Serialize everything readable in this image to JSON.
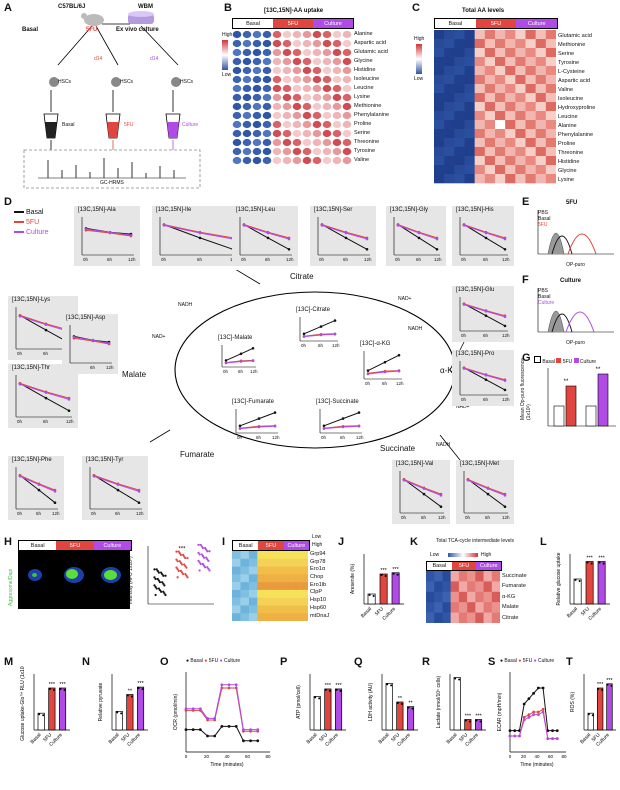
{
  "panels": [
    "A",
    "B",
    "C",
    "D",
    "E",
    "F",
    "G",
    "H",
    "I",
    "J",
    "K",
    "L",
    "M",
    "N",
    "O",
    "P",
    "Q",
    "R",
    "S",
    "T"
  ],
  "groups": {
    "basal": "Basal",
    "fu": "5FU",
    "culture": "Culture",
    "pbs": "PBS"
  },
  "colors": {
    "basal": "#111111",
    "fu": "#e0463f",
    "culture": "#b04be6",
    "heat_high": "#d0343a",
    "heat_low": "#2f56a6"
  },
  "panelA": {
    "mouse": "C57BL/6J",
    "wbm": "WBM",
    "exvivo": "Ex vivo culture",
    "basal": "Basal",
    "fu": "5FU",
    "d14a": "d14",
    "d14b": "d14",
    "hscs1": "HSCs",
    "hscs2": "HSCs",
    "hscs3": "HSCs",
    "out_basal": "Basal",
    "out_fu": "5FU",
    "out_culture": "Culture",
    "gc": "GC-HRMS"
  },
  "panelB": {
    "title": "[13C,15N]-AA uptake",
    "high": "High",
    "low": "Low",
    "rows": [
      "Alanine",
      "Aspartic acid",
      "Glutamic acid",
      "Glycine",
      "Histidine",
      "Isoleucine",
      "Leucine",
      "Lysine",
      "Methionine",
      "Phenylalanine",
      "Proline",
      "Serine",
      "Threonine",
      "Tyrosine",
      "Valine"
    ]
  },
  "panelC": {
    "title": "Total AA levels",
    "high": "High",
    "low": "Low",
    "rows": [
      "Glutamic acid",
      "Methionine",
      "Serine",
      "Tyrosine",
      "L-Cysteine",
      "Aspartic acid",
      "Valine",
      "Isoleucine",
      "Hydroxyproline",
      "Leucine",
      "Alanine",
      "Phenylalanine",
      "Proline",
      "Threonine",
      "Histidine",
      "Glycine",
      "Lysine"
    ]
  },
  "panelD": {
    "legend": [
      "Basal",
      "5FU",
      "Culture"
    ],
    "aa_titles": {
      "ala": "[13C,15N]-Ala",
      "ile": "[13C,15N]-Ile",
      "leu": "[13C,15N]-Leu",
      "ser": "[13C,15N]-Ser",
      "gly": "[13C,15N]-Gly",
      "his": "[13C,15N]-His",
      "lys": "[13C,15N]-Lys",
      "asp": "[13C,15N]-Asp",
      "thr": "[13C,15N]-Thr",
      "glu": "[13C,15N]-Glu",
      "pro": "[13C,15N]-Pro",
      "phe": "[13C,15N]-Phe",
      "tyr": "[13C,15N]-Tyr",
      "val": "[13C,15N]-Val",
      "met": "[13C,15N]-Met"
    },
    "tca_titles": {
      "malate": "[13C]-Malate",
      "citrate": "[13C]-Citrate",
      "akg": "[13C]-α-KG",
      "fumarate": "[13C]-Fumarate",
      "succinate": "[13C]-Succinate"
    },
    "cycle": {
      "citrate": "Citrate",
      "akg": "α-KG",
      "succinate": "Succinate",
      "fumarate": "Fumarate",
      "malate": "Malate",
      "nadh1": "NADH",
      "nad1": "NAD+",
      "nad2": "NAD+",
      "nadh2": "NADH",
      "nad3": "NAD+",
      "nadh3": "NADH"
    },
    "x_ticks": [
      "0h",
      "6h",
      "12h"
    ]
  },
  "panelE": {
    "title": "5FU",
    "legend": [
      "PBS",
      "Basal",
      "5FU"
    ],
    "xlabel": "OP-puro"
  },
  "panelF": {
    "title": "Culture",
    "legend": [
      "PBS",
      "Basal",
      "Culture"
    ],
    "xlabel": "OP-puro"
  },
  "panelG": {
    "legend": [
      "Basal",
      "5FU",
      "Culture"
    ],
    "ylabel": "Mean Op-puro fluorescence (1x10³)",
    "sig": [
      "**",
      "**"
    ],
    "chart_data": {
      "type": "bar",
      "series": [
        {
          "name": "Basal",
          "values": [
            1.0,
            1.0
          ]
        },
        {
          "name": "5FU",
          "values": [
            2.0,
            null
          ]
        },
        {
          "name": "Culture",
          "values": [
            null,
            2.6
          ]
        }
      ]
    }
  },
  "panelH": {
    "header": [
      "Basal",
      "5FU",
      "Culture"
    ],
    "stain": "Aggresome/Dapi",
    "ylabel": "Intensity (AFU 1x10⁶)",
    "sig": [
      "***",
      "***"
    ],
    "chart_data": {
      "type": "scatter",
      "categories": [
        "Basal",
        "5FU",
        "Culture"
      ],
      "values": [
        0.8,
        1.45,
        1.7
      ]
    }
  },
  "panelI": {
    "header": [
      "Basal",
      "5FU",
      "Culture"
    ],
    "rows": [
      "Grp94",
      "Grp78",
      "Ero1α",
      "Chop",
      "Ero1lb",
      "ClpP",
      "Hsp10",
      "Hsp60",
      "mtDnaJ"
    ],
    "low": "Low",
    "high": "High"
  },
  "panelJ": {
    "ylabel": "Aresenite (%)",
    "cats": [
      "Basal",
      "5FU",
      "Culture"
    ],
    "sig": [
      "***",
      "***"
    ],
    "chart_data": {
      "type": "bar",
      "categories": [
        "Basal",
        "5FU",
        "Culture"
      ],
      "values": [
        8,
        24,
        25
      ],
      "ylim": [
        0,
        40
      ]
    }
  },
  "panelK": {
    "title": "Total TCA-cycle intermediate levels",
    "low": "Low",
    "high": "High",
    "header": [
      "Basal",
      "5FU",
      "Culture"
    ],
    "rows": [
      "Succinate",
      "Fumarate",
      "α-KG",
      "Malate",
      "Citrate"
    ]
  },
  "panelL": {
    "ylabel": "Relative glucose uptake",
    "cats": [
      "Basal",
      "5FU",
      "Culture"
    ],
    "sig": [
      "***",
      "***"
    ],
    "chart_data": {
      "type": "bar",
      "categories": [
        "Basal",
        "5FU",
        "Culture"
      ],
      "values": [
        1.0,
        1.7,
        1.7
      ],
      "ylim": [
        0,
        2
      ]
    }
  },
  "panelM": {
    "ylabel": "Glucose uptake-Glo™ RLU (1x10³)",
    "cats": [
      "Basal",
      "5FU",
      "Culture"
    ],
    "sig": [
      "***",
      "***"
    ],
    "chart_data": {
      "type": "bar",
      "categories": [
        "Basal",
        "5FU",
        "Culture"
      ],
      "values": [
        1.2,
        3.0,
        3.0
      ],
      "ylim": [
        0,
        4
      ]
    }
  },
  "panelN": {
    "ylabel": "Relative pyruvate",
    "cats": [
      "Basal",
      "5FU",
      "Culture"
    ],
    "sig": [
      "**",
      "***"
    ],
    "chart_data": {
      "type": "bar",
      "categories": [
        "Basal",
        "5FU",
        "Culture"
      ],
      "values": [
        1.0,
        1.9,
        2.3
      ],
      "ylim": [
        0,
        3
      ]
    }
  },
  "panelO": {
    "legend": [
      "Basal",
      "5FU",
      "Culture"
    ],
    "ylabel": "OCR (pmol/min)",
    "xlabel": "Time (minutes)",
    "xticks": [
      "0",
      "20",
      "40",
      "60",
      "80"
    ],
    "chart_data": {
      "type": "line",
      "x": [
        0,
        7,
        14,
        21,
        28,
        35,
        42,
        49,
        56,
        63,
        70
      ],
      "series": [
        {
          "name": "Basal",
          "values": [
            14,
            14,
            14,
            10,
            10,
            16,
            16,
            16,
            7,
            7,
            7
          ]
        },
        {
          "name": "5FU",
          "values": [
            26,
            26,
            26,
            20,
            20,
            40,
            40,
            40,
            13,
            13,
            13
          ]
        },
        {
          "name": "Culture",
          "values": [
            27,
            27,
            27,
            21,
            21,
            42,
            42,
            42,
            14,
            14,
            14
          ]
        }
      ],
      "ylim": [
        0,
        50
      ]
    }
  },
  "panelP": {
    "ylabel": "ATP (pmol/cell)",
    "cats": [
      "Basal",
      "5FU",
      "Culture"
    ],
    "sig": [
      "***",
      "***"
    ],
    "chart_data": {
      "type": "bar",
      "categories": [
        "Basal",
        "5FU",
        "Culture"
      ],
      "values": [
        0.9,
        1.1,
        1.1
      ],
      "ylim": [
        0,
        1.5
      ]
    }
  },
  "panelQ": {
    "ylabel": "LDH activity (AU)",
    "cats": [
      "Basal",
      "5FU",
      "Culture"
    ],
    "sig": [
      "**",
      "**"
    ],
    "chart_data": {
      "type": "bar",
      "categories": [
        "Basal",
        "5FU",
        "Culture"
      ],
      "values": [
        100,
        60,
        50
      ],
      "ylim": [
        0,
        120
      ]
    }
  },
  "panelR": {
    "ylabel": "Lactate (nmol/10⁵ cells)",
    "cats": [
      "Basal",
      "5FU",
      "Culture"
    ],
    "sig": [
      "***",
      "***"
    ],
    "chart_data": {
      "type": "bar",
      "categories": [
        "Basal",
        "5FU",
        "Culture"
      ],
      "values": [
        150,
        30,
        30
      ],
      "ylim": [
        0,
        160
      ]
    }
  },
  "panelS": {
    "legend": [
      "Basal",
      "5FU",
      "Culture"
    ],
    "ylabel": "ECAR (mpH/min)",
    "xlabel": "Time (minutes)",
    "xticks": [
      "0",
      "20",
      "40",
      "60",
      "80"
    ],
    "chart_data": {
      "type": "line",
      "x": [
        0,
        7,
        14,
        21,
        28,
        35,
        42,
        49,
        56,
        63,
        70
      ],
      "series": [
        {
          "name": "Basal",
          "values": [
            8,
            8,
            8,
            18,
            20,
            22,
            24,
            24,
            8,
            8,
            8
          ]
        },
        {
          "name": "5FU",
          "values": [
            6,
            6,
            6,
            13,
            14,
            15,
            15,
            16,
            5,
            5,
            5
          ]
        },
        {
          "name": "Culture",
          "values": [
            6,
            6,
            6,
            12,
            13,
            14,
            14,
            15,
            5,
            5,
            5
          ]
        }
      ],
      "ylim": [
        0,
        30
      ]
    }
  },
  "panelT": {
    "ylabel": "ROS (%)",
    "cats": [
      "Basal",
      "5FU",
      "Culture"
    ],
    "sig": [
      "***",
      "***"
    ],
    "chart_data": {
      "type": "bar",
      "categories": [
        "Basal",
        "5FU",
        "Culture"
      ],
      "values": [
        12,
        30,
        33
      ],
      "ylim": [
        0,
        40
      ]
    }
  }
}
